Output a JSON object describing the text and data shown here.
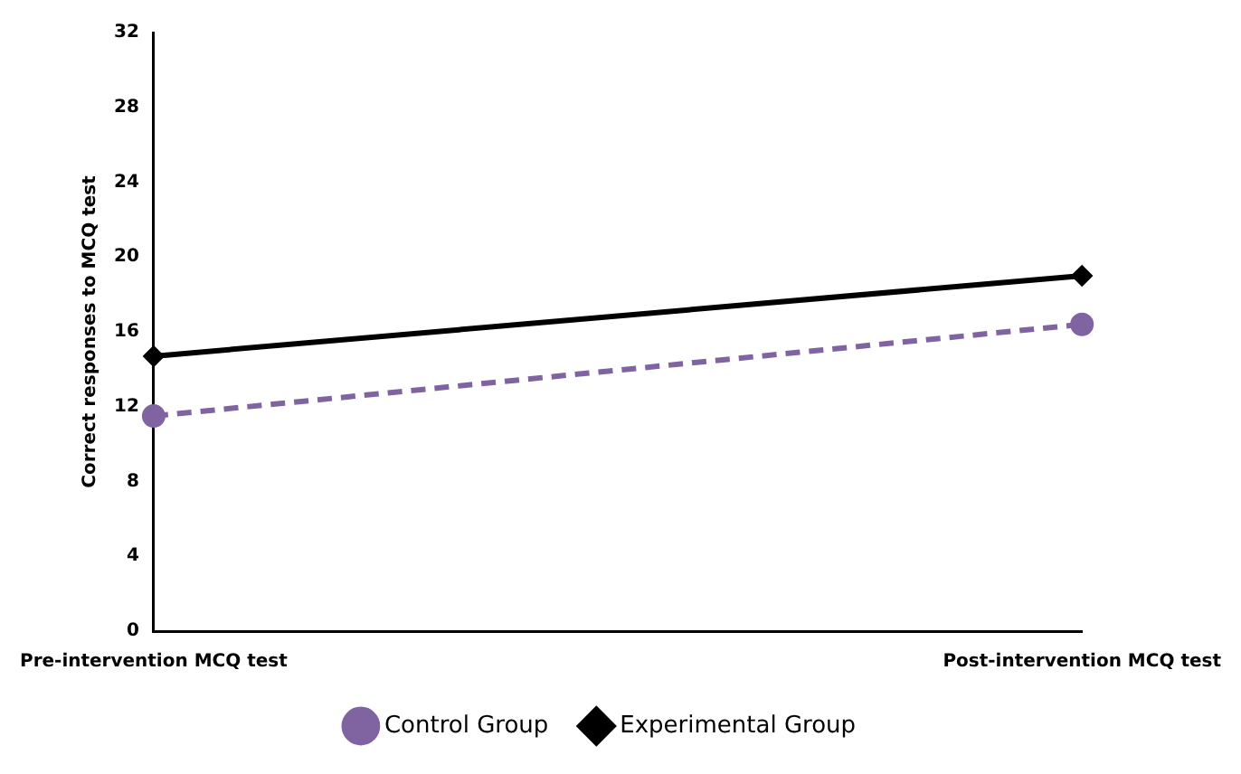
{
  "chart_data": {
    "type": "line",
    "ylabel": "Correct responses to MCQ test",
    "categories": [
      "Pre-intervention MCQ test",
      "Post-intervention MCQ test"
    ],
    "series": [
      {
        "name": "Control Group",
        "color": "#8064a2",
        "values": [
          11.5,
          16.4
        ],
        "marker": "circle",
        "line_style": "dashed"
      },
      {
        "name": "Experimental Group",
        "color": "#000000",
        "values": [
          14.7,
          19.0
        ],
        "marker": "diamond",
        "line_style": "solid"
      }
    ],
    "ylim": [
      0,
      32
    ],
    "yticks": [
      0,
      4,
      8,
      12,
      16,
      20,
      24,
      28,
      32
    ],
    "grid": false,
    "legend": "bottom"
  }
}
